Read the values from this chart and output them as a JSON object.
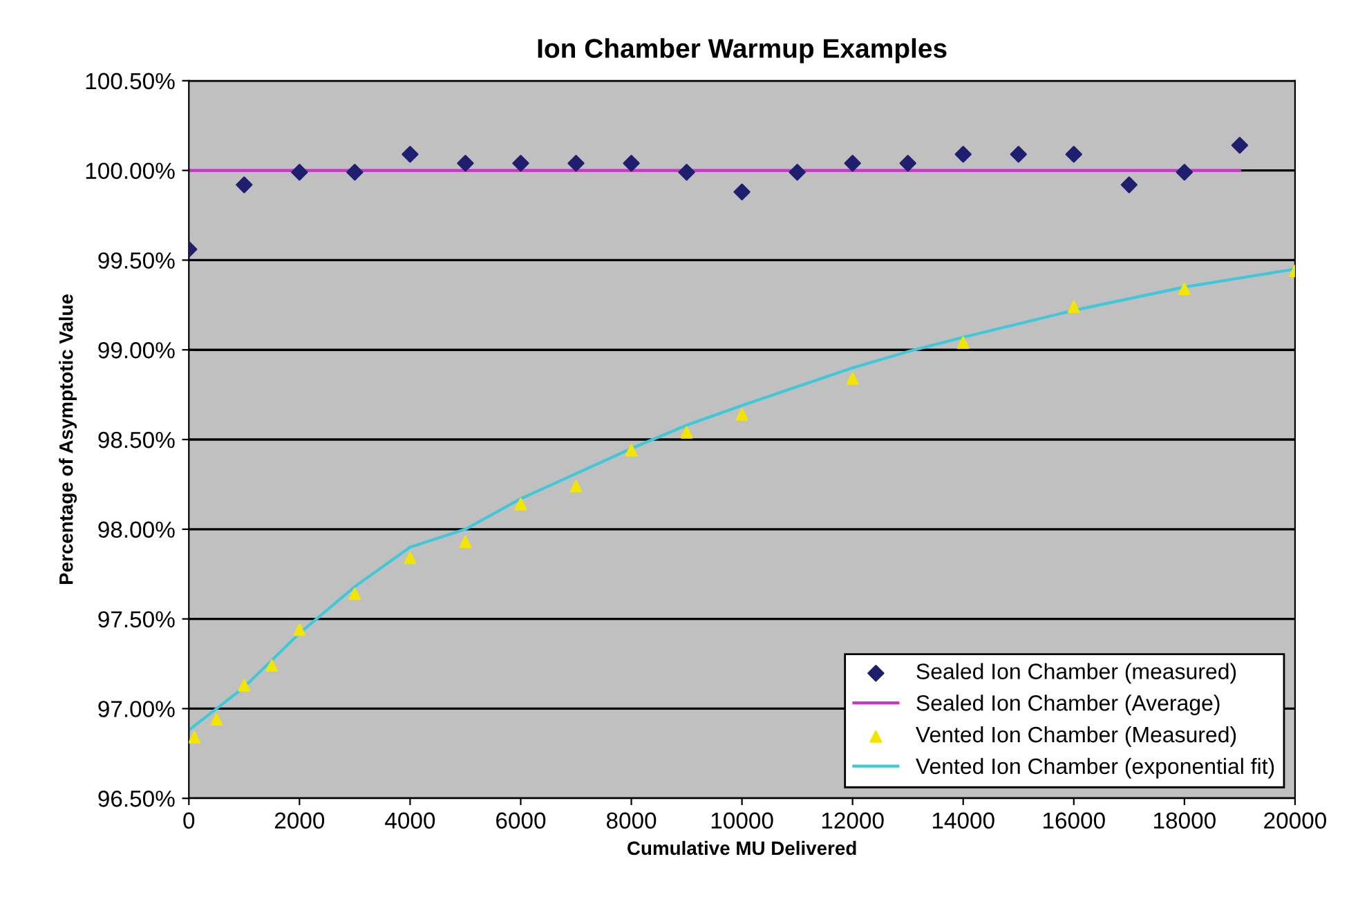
{
  "chart_data": {
    "type": "scatter",
    "title": "Ion Chamber Warmup Examples",
    "xlabel": "Cumulative MU Delivered",
    "ylabel": "Percentage of Asymptotic Value",
    "xlim": [
      0,
      20000
    ],
    "xticks": [
      0,
      2000,
      4000,
      6000,
      8000,
      10000,
      12000,
      14000,
      16000,
      18000,
      20000
    ],
    "ylim": [
      96.5,
      100.5
    ],
    "yticks": [
      {
        "value": 96.5,
        "label": "96.50%"
      },
      {
        "value": 97.0,
        "label": "97.00%"
      },
      {
        "value": 97.5,
        "label": "97.50%"
      },
      {
        "value": 98.0,
        "label": "98.00%"
      },
      {
        "value": 98.5,
        "label": "98.50%"
      },
      {
        "value": 99.0,
        "label": "99.00%"
      },
      {
        "value": 99.5,
        "label": "99.50%"
      },
      {
        "value": 100.0,
        "label": "100.00%"
      },
      {
        "value": 100.5,
        "label": "100.50%"
      }
    ],
    "grid": "y",
    "legend": "bottom right",
    "series": [
      {
        "name": "Sealed Ion Chamber (measured)",
        "marker": "diamond",
        "color": "#1f1f6e",
        "x": [
          0,
          1000,
          2000,
          3000,
          4000,
          5000,
          6000,
          7000,
          8000,
          9000,
          10000,
          11000,
          12000,
          13000,
          14000,
          15000,
          16000,
          17000,
          18000,
          19000
        ],
        "values": [
          99.56,
          99.92,
          99.99,
          99.99,
          100.09,
          100.04,
          100.04,
          100.04,
          100.04,
          99.99,
          99.88,
          99.99,
          100.04,
          100.04,
          100.09,
          100.09,
          100.09,
          99.92,
          99.99,
          100.14
        ]
      },
      {
        "name": "Sealed Ion Chamber (Average)",
        "type": "line",
        "color": "#cc33cc",
        "x": [
          0,
          19000
        ],
        "values": [
          100.0,
          100.0
        ]
      },
      {
        "name": "Vented Ion Chamber (Measured)",
        "marker": "triangle",
        "color": "#f2e600",
        "x": [
          100,
          500,
          1000,
          1500,
          2000,
          3000,
          4000,
          5000,
          6000,
          7000,
          8000,
          9000,
          10000,
          12000,
          14000,
          16000,
          18000,
          20000
        ],
        "values": [
          96.84,
          96.94,
          97.13,
          97.24,
          97.44,
          97.64,
          97.84,
          97.93,
          98.14,
          98.24,
          98.44,
          98.54,
          98.64,
          98.84,
          99.04,
          99.24,
          99.34,
          99.44
        ]
      },
      {
        "name": "Vented Ion Chamber (exponential fit)",
        "type": "line",
        "color": "#40c8d8",
        "x": [
          0,
          1000,
          2000,
          3000,
          4000,
          5000,
          6000,
          7000,
          8000,
          9000,
          10000,
          12000,
          13000,
          14000,
          16000,
          18000,
          20000
        ],
        "values": [
          96.88,
          97.12,
          97.42,
          97.68,
          97.9,
          98.0,
          98.17,
          98.31,
          98.45,
          98.58,
          98.69,
          98.9,
          98.99,
          99.07,
          99.22,
          99.35,
          99.45
        ]
      }
    ]
  }
}
